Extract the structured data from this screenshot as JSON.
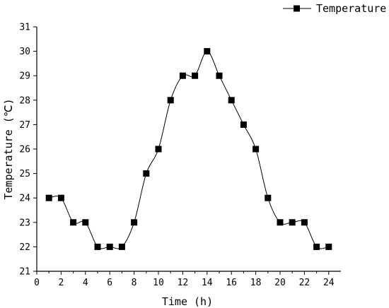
{
  "chart_data": {
    "type": "line",
    "title": "",
    "xlabel": "Time (h)",
    "ylabel": "Temperature (℃)",
    "xlim": [
      0,
      25
    ],
    "ylim": [
      21,
      31
    ],
    "x_ticks": [
      0,
      2,
      4,
      6,
      8,
      10,
      12,
      14,
      16,
      18,
      20,
      22,
      24
    ],
    "y_ticks": [
      21,
      22,
      23,
      24,
      25,
      26,
      27,
      28,
      29,
      30,
      31
    ],
    "grid": false,
    "legend_position": "top-right",
    "series": [
      {
        "name": "Temperature",
        "marker": "square",
        "color": "#000000",
        "smooth": true,
        "x": [
          1,
          2,
          3,
          4,
          5,
          6,
          7,
          8,
          9,
          10,
          11,
          12,
          13,
          14,
          15,
          16,
          17,
          18,
          19,
          20,
          21,
          22,
          23,
          24
        ],
        "y": [
          24,
          24,
          23,
          23,
          22,
          22,
          22,
          23,
          25,
          26,
          28,
          29,
          29,
          30,
          29,
          28,
          27,
          26,
          24,
          23,
          23,
          23,
          22,
          22
        ]
      }
    ]
  }
}
